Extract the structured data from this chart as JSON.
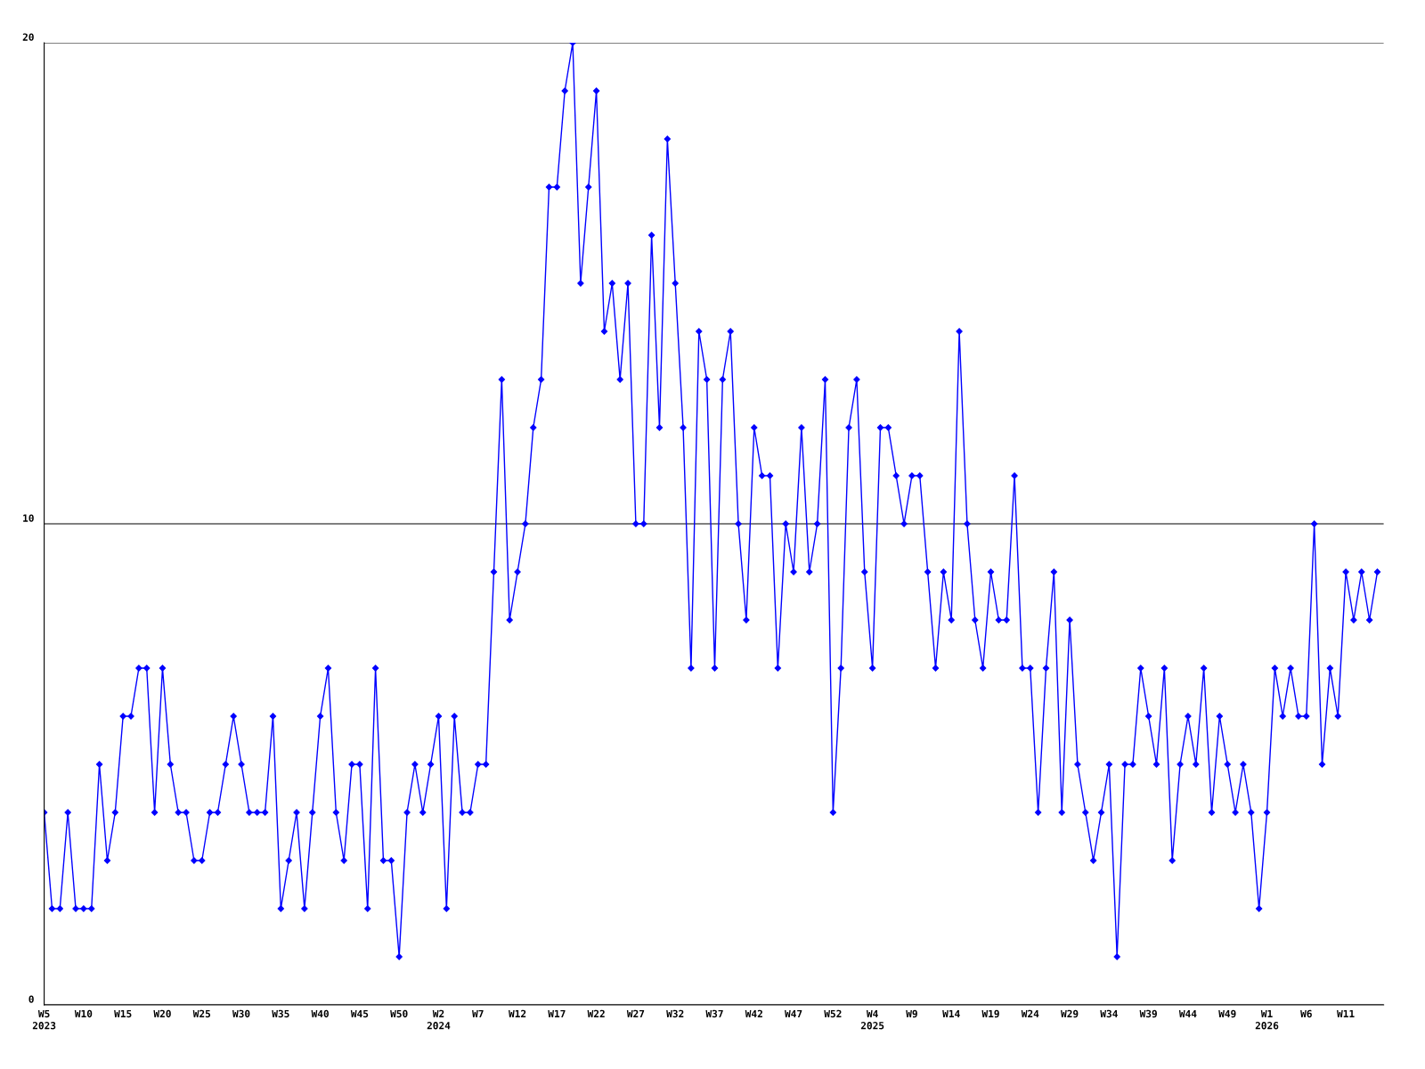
{
  "chart_data": {
    "type": "line",
    "categories": [
      "W5\n2023",
      null,
      null,
      null,
      null,
      "W10",
      null,
      null,
      null,
      null,
      "W15",
      null,
      null,
      null,
      null,
      "W20",
      null,
      null,
      null,
      null,
      "W25",
      null,
      null,
      null,
      null,
      "W30",
      null,
      null,
      null,
      null,
      "W35",
      null,
      null,
      null,
      null,
      "W40",
      null,
      null,
      null,
      null,
      "W45",
      null,
      null,
      null,
      null,
      "W50",
      null,
      null,
      null,
      null,
      "W2\n2024",
      null,
      null,
      null,
      null,
      "W7",
      null,
      null,
      null,
      null,
      "W12",
      null,
      null,
      null,
      null,
      "W17",
      null,
      null,
      null,
      null,
      "W22",
      null,
      null,
      null,
      null,
      "W27",
      null,
      null,
      null,
      null,
      "W32",
      null,
      null,
      null,
      null,
      "W37",
      null,
      null,
      null,
      null,
      "W42",
      null,
      null,
      null,
      null,
      "W47",
      null,
      null,
      null,
      null,
      "W52",
      null,
      null,
      null,
      null,
      "W4\n2025",
      null,
      null,
      null,
      null,
      "W9",
      null,
      null,
      null,
      null,
      "W14",
      null,
      null,
      null,
      null,
      "W19",
      null,
      null,
      null,
      null,
      "W24",
      null,
      null,
      null,
      null,
      "W29",
      null,
      null,
      null,
      null,
      "W34",
      null,
      null,
      null,
      null,
      "W39",
      null,
      null,
      null,
      null,
      "W44",
      null,
      null,
      null,
      null,
      "W49",
      null,
      null,
      null,
      null,
      "W1\n2026",
      null,
      null,
      null,
      null,
      "W6",
      null,
      null,
      null,
      null,
      "W11",
      null,
      null,
      null,
      null
    ],
    "series": [
      {
        "color": "#0000ff",
        "values": [
          4,
          2,
          2,
          4,
          2,
          2,
          2,
          5,
          3,
          4,
          6,
          6,
          7,
          7,
          4,
          7,
          5,
          4,
          4,
          3,
          3,
          4,
          4,
          5,
          6,
          5,
          4,
          4,
          4,
          6,
          2,
          3,
          4,
          2,
          4,
          6,
          7,
          4,
          3,
          5,
          5,
          2,
          7,
          3,
          3,
          1,
          4,
          5,
          4,
          5,
          6,
          2,
          6,
          4,
          4,
          5,
          5,
          9,
          13,
          8,
          9,
          10,
          12,
          13,
          17,
          17,
          19,
          20,
          15,
          17,
          19,
          14,
          15,
          13,
          15,
          10,
          10,
          16,
          12,
          18,
          15,
          12,
          7,
          14,
          13,
          7,
          13,
          14,
          10,
          8,
          12,
          11,
          11,
          7,
          10,
          9,
          12,
          9,
          10,
          13,
          4,
          7,
          12,
          13,
          9,
          7,
          12,
          12,
          11,
          10,
          11,
          11,
          9,
          7,
          9,
          8,
          14,
          10,
          8,
          7,
          9,
          8,
          8,
          11,
          7,
          7,
          4,
          7,
          9,
          4,
          8,
          5,
          4,
          3,
          4,
          5,
          1,
          5,
          5,
          7,
          6,
          5,
          7,
          3,
          5,
          6,
          5,
          7,
          4,
          6,
          5,
          4,
          5,
          4,
          2,
          4,
          7,
          6,
          7,
          6,
          6,
          10,
          5,
          7,
          6,
          9,
          8,
          9,
          8,
          9
        ]
      }
    ],
    "ylim": [
      0,
      20
    ],
    "yticks": [
      0,
      10,
      20
    ],
    "grid": "y",
    "marker": "diamond",
    "line_style": "solid"
  }
}
